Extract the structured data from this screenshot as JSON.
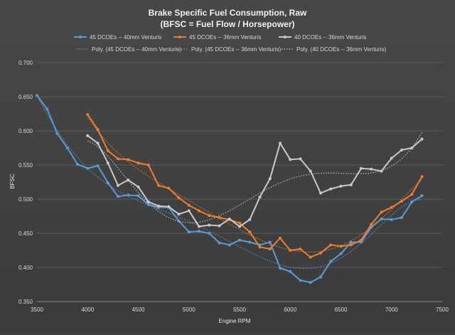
{
  "chart_data": {
    "type": "line",
    "title": "Brake Specific Fuel Consumption, Raw",
    "subtitle": "(BFSC  =  Fuel Flow / Horsepower)",
    "xlabel": "Engine RPM",
    "ylabel": "BFSC",
    "xlim": [
      3500,
      7500
    ],
    "ylim": [
      0.35,
      0.7
    ],
    "x_ticks": [
      3500,
      4000,
      4500,
      5000,
      5500,
      6000,
      6500,
      7000,
      7500
    ],
    "x_tick_labels": [
      "3500",
      "4000",
      "4500",
      "5000",
      "5500",
      "6000",
      "6500",
      "7000",
      "7500"
    ],
    "y_ticks": [
      0.35,
      0.4,
      0.45,
      0.5,
      0.55,
      0.6,
      0.65,
      0.7
    ],
    "y_tick_labels": [
      "0.350",
      "0.400",
      "0.450",
      "0.500",
      "0.550",
      "0.600",
      "0.650",
      "0.700"
    ],
    "grid": true,
    "legend_position": "top",
    "legend_rows": [
      [
        {
          "label": "45 DCOEs  --  40mm Venturis",
          "marker": true,
          "color": "#5b9bd5"
        },
        {
          "label": "45 DCOEs  --  36mm Venturis",
          "marker": true,
          "color": "#ed7d31"
        },
        {
          "label": "40 DCOEs  --  36mm Venturis",
          "marker": true,
          "color": "#c9c9c9"
        }
      ],
      [
        {
          "label": "Poly. (45 DCOEs  --  40mm Venturis)",
          "marker": false,
          "color": "#5b9bd5"
        },
        {
          "label": "Poly. (45 DCOEs  --  36mm Venturis)",
          "marker": false,
          "color": "#ed7d31"
        },
        {
          "label": "Poly. (40 DCOEs  --  36mm Venturis)",
          "marker": false,
          "color": "#c9c9c9"
        }
      ]
    ],
    "series": [
      {
        "name": "45 DCOEs  --  40mm Venturis",
        "color": "#5b9bd5",
        "x": [
          3500,
          3600,
          3700,
          3800,
          3900,
          4000,
          4100,
          4200,
          4300,
          4400,
          4500,
          4600,
          4700,
          4800,
          4900,
          5000,
          5100,
          5200,
          5300,
          5400,
          5500,
          5600,
          5700,
          5800,
          5900,
          6000,
          6100,
          6200,
          6300,
          6400,
          6500,
          6600,
          6700,
          6800,
          6900,
          7000,
          7100,
          7200,
          7300
        ],
        "y": [
          0.652,
          0.632,
          0.596,
          0.575,
          0.551,
          0.545,
          0.549,
          0.524,
          0.504,
          0.506,
          0.505,
          0.492,
          0.488,
          0.488,
          0.468,
          0.452,
          0.453,
          0.45,
          0.436,
          0.433,
          0.44,
          0.437,
          0.433,
          0.437,
          0.399,
          0.394,
          0.381,
          0.378,
          0.386,
          0.409,
          0.42,
          0.437,
          0.437,
          0.459,
          0.471,
          0.47,
          0.473,
          0.496,
          0.505
        ]
      },
      {
        "name": "45 DCOEs  --  36mm Venturis",
        "color": "#ed7d31",
        "x": [
          4000,
          4100,
          4200,
          4300,
          4400,
          4500,
          4600,
          4700,
          4800,
          4900,
          5000,
          5100,
          5200,
          5300,
          5400,
          5500,
          5600,
          5700,
          5800,
          5900,
          6000,
          6100,
          6200,
          6300,
          6400,
          6500,
          6600,
          6700,
          6800,
          6900,
          7000,
          7100,
          7200,
          7300
        ],
        "y": [
          0.624,
          0.602,
          0.571,
          0.559,
          0.558,
          0.553,
          0.55,
          0.52,
          0.516,
          0.502,
          0.491,
          0.483,
          0.476,
          0.473,
          0.47,
          0.465,
          0.452,
          0.43,
          0.427,
          0.443,
          0.425,
          0.427,
          0.415,
          0.421,
          0.433,
          0.431,
          0.433,
          0.44,
          0.463,
          0.481,
          0.488,
          0.497,
          0.507,
          0.533
        ]
      },
      {
        "name": "40 DCOEs  --  36mm Venturis",
        "color": "#c9c9c9",
        "x": [
          4000,
          4100,
          4200,
          4300,
          4400,
          4500,
          4600,
          4700,
          4800,
          4900,
          5000,
          5100,
          5200,
          5300,
          5400,
          5500,
          5600,
          5700,
          5800,
          5900,
          6000,
          6100,
          6200,
          6300,
          6400,
          6500,
          6600,
          6700,
          6800,
          6900,
          7000,
          7100,
          7200,
          7300
        ],
        "y": [
          0.593,
          0.582,
          0.553,
          0.52,
          0.528,
          0.518,
          0.496,
          0.49,
          0.489,
          0.478,
          0.483,
          0.46,
          0.462,
          0.461,
          0.471,
          0.46,
          0.47,
          0.503,
          0.53,
          0.582,
          0.558,
          0.559,
          0.541,
          0.509,
          0.515,
          0.519,
          0.521,
          0.545,
          0.544,
          0.541,
          0.56,
          0.572,
          0.575,
          0.588
        ]
      }
    ]
  }
}
